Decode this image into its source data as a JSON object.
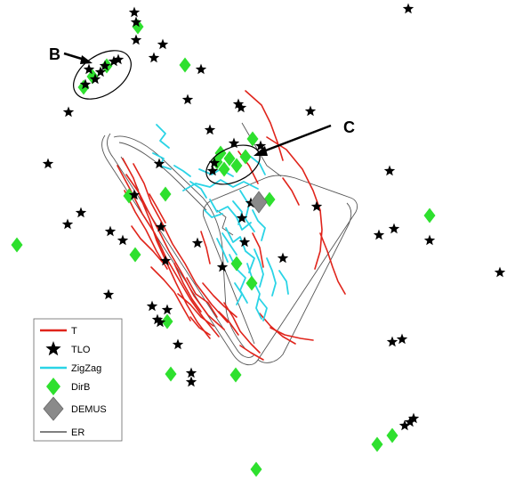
{
  "annotations": {
    "b_label": "B",
    "c_label": "C"
  },
  "legend": {
    "items": [
      {
        "label": "T",
        "symbol": "line",
        "color": "#e0241b"
      },
      {
        "label": "TLO",
        "symbol": "star",
        "color": "#000000"
      },
      {
        "label": "ZigZag",
        "symbol": "line",
        "color": "#2ad4e6"
      },
      {
        "label": "DirB",
        "symbol": "diamond",
        "color": "#2ee02e"
      },
      {
        "label": "DEMUS",
        "symbol": "diamond-large",
        "color": "#8a8a8a"
      },
      {
        "label": "ER",
        "symbol": "thin-line",
        "color": "#000000"
      }
    ]
  },
  "colors": {
    "t": "#e0241b",
    "tlo": "#000000",
    "zigzag": "#2ad4e6",
    "dirb": "#2ee02e",
    "demus": "#8a8a8a",
    "er": "#555555"
  }
}
